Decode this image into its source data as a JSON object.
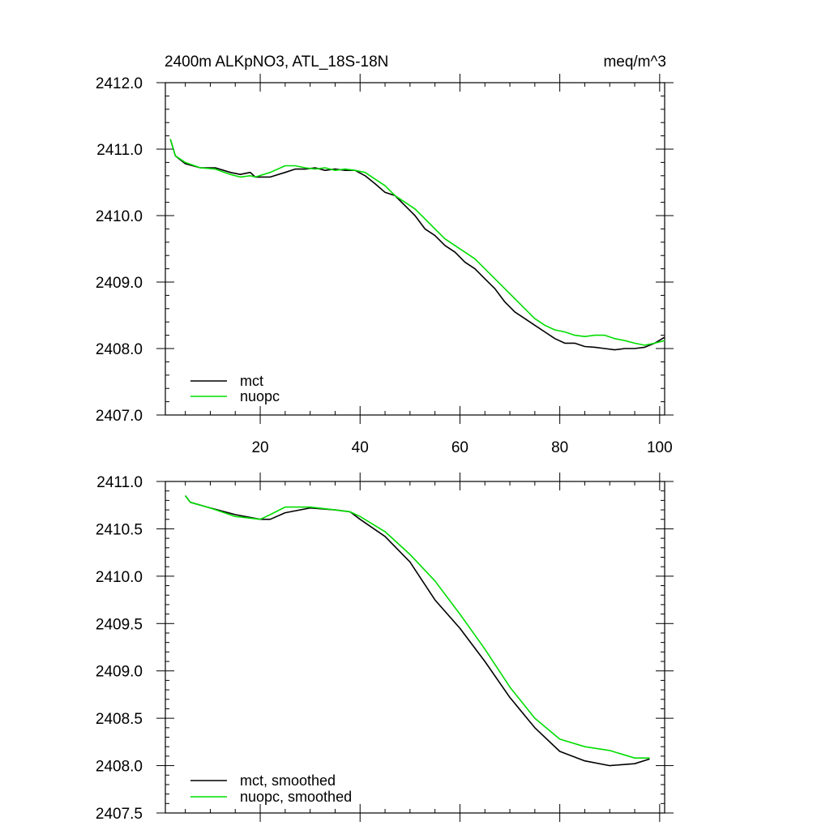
{
  "chart_data": [
    {
      "type": "line",
      "title": "2400m ALKpNO3, ATL_18S-18N",
      "units": "meq/m^3",
      "xlim": [
        1,
        101
      ],
      "ylim": [
        2407.0,
        2412.0
      ],
      "xticks": [
        20,
        40,
        60,
        80,
        100
      ],
      "xtick_labels": [
        "20",
        "40",
        "60",
        "80",
        "100"
      ],
      "yticks": [
        2407.0,
        2408.0,
        2409.0,
        2410.0,
        2411.0,
        2412.0
      ],
      "ytick_labels": [
        "2407.0",
        "2408.0",
        "2409.0",
        "2410.0",
        "2411.0",
        "2412.0"
      ],
      "legend_position": "bottom-left",
      "series": [
        {
          "name": "mct",
          "color": "#000000",
          "x": [
            2,
            3,
            5,
            8,
            11,
            14,
            16,
            18,
            19,
            22,
            25,
            27,
            29,
            31,
            33,
            35,
            37,
            39,
            41,
            43,
            45,
            47,
            49,
            51,
            53,
            55,
            57,
            59,
            61,
            63,
            65,
            67,
            69,
            71,
            73,
            75,
            77,
            79,
            81,
            83,
            85,
            87,
            89,
            91,
            93,
            95,
            97,
            99,
            101
          ],
          "values": [
            2411.15,
            2410.9,
            2410.78,
            2410.72,
            2410.72,
            2410.65,
            2410.62,
            2410.65,
            2410.58,
            2410.58,
            2410.65,
            2410.7,
            2410.7,
            2410.72,
            2410.68,
            2410.7,
            2410.68,
            2410.68,
            2410.6,
            2410.48,
            2410.35,
            2410.3,
            2410.15,
            2410.0,
            2409.8,
            2409.7,
            2409.55,
            2409.45,
            2409.3,
            2409.2,
            2409.05,
            2408.9,
            2408.7,
            2408.55,
            2408.45,
            2408.35,
            2408.25,
            2408.15,
            2408.08,
            2408.08,
            2408.03,
            2408.02,
            2408.0,
            2407.98,
            2408.0,
            2408.0,
            2408.02,
            2408.08,
            2408.17
          ]
        },
        {
          "name": "nuopc",
          "color": "#00dd00",
          "x": [
            2,
            3,
            5,
            8,
            11,
            14,
            16,
            18,
            19,
            22,
            25,
            27,
            29,
            31,
            33,
            35,
            37,
            39,
            41,
            43,
            45,
            47,
            49,
            51,
            53,
            55,
            57,
            59,
            61,
            63,
            65,
            67,
            69,
            71,
            73,
            75,
            77,
            79,
            81,
            83,
            85,
            87,
            89,
            91,
            93,
            95,
            97,
            99,
            101
          ],
          "values": [
            2411.15,
            2410.9,
            2410.8,
            2410.72,
            2410.7,
            2410.62,
            2410.58,
            2410.6,
            2410.58,
            2410.65,
            2410.75,
            2410.75,
            2410.72,
            2410.7,
            2410.72,
            2410.68,
            2410.7,
            2410.68,
            2410.65,
            2410.55,
            2410.45,
            2410.3,
            2410.2,
            2410.1,
            2409.95,
            2409.8,
            2409.65,
            2409.55,
            2409.45,
            2409.35,
            2409.2,
            2409.05,
            2408.9,
            2408.75,
            2408.6,
            2408.45,
            2408.35,
            2408.28,
            2408.25,
            2408.2,
            2408.18,
            2408.2,
            2408.2,
            2408.15,
            2408.12,
            2408.08,
            2408.05,
            2408.08,
            2408.12
          ]
        }
      ]
    },
    {
      "type": "line",
      "xlim": [
        1,
        101
      ],
      "ylim": [
        2407.5,
        2411.0
      ],
      "xticks": [
        20,
        40,
        60,
        80,
        100
      ],
      "yticks": [
        2407.5,
        2408.0,
        2408.5,
        2409.0,
        2409.5,
        2410.0,
        2410.5,
        2411.0
      ],
      "ytick_labels": [
        "2407.5",
        "2408.0",
        "2408.5",
        "2409.0",
        "2409.5",
        "2410.0",
        "2410.5",
        "2411.0"
      ],
      "legend_position": "bottom-left",
      "series": [
        {
          "name": "mct, smoothed",
          "color": "#000000",
          "x": [
            5,
            6,
            10,
            15,
            20,
            22,
            25,
            30,
            35,
            38,
            40,
            45,
            50,
            55,
            60,
            65,
            70,
            75,
            80,
            85,
            90,
            95,
            98
          ],
          "values": [
            2410.85,
            2410.78,
            2410.72,
            2410.65,
            2410.6,
            2410.6,
            2410.67,
            2410.72,
            2410.7,
            2410.68,
            2410.6,
            2410.42,
            2410.15,
            2409.75,
            2409.45,
            2409.1,
            2408.72,
            2408.4,
            2408.15,
            2408.05,
            2408.0,
            2408.02,
            2408.07
          ]
        },
        {
          "name": "nuopc, smoothed",
          "color": "#00dd00",
          "x": [
            5,
            6,
            10,
            15,
            20,
            22,
            25,
            30,
            35,
            38,
            40,
            45,
            50,
            55,
            60,
            65,
            70,
            75,
            80,
            85,
            90,
            95,
            98
          ],
          "values": [
            2410.85,
            2410.78,
            2410.72,
            2410.63,
            2410.6,
            2410.65,
            2410.73,
            2410.73,
            2410.7,
            2410.68,
            2410.63,
            2410.47,
            2410.23,
            2409.95,
            2409.6,
            2409.23,
            2408.83,
            2408.5,
            2408.28,
            2408.2,
            2408.16,
            2408.08,
            2408.08
          ]
        }
      ]
    }
  ]
}
